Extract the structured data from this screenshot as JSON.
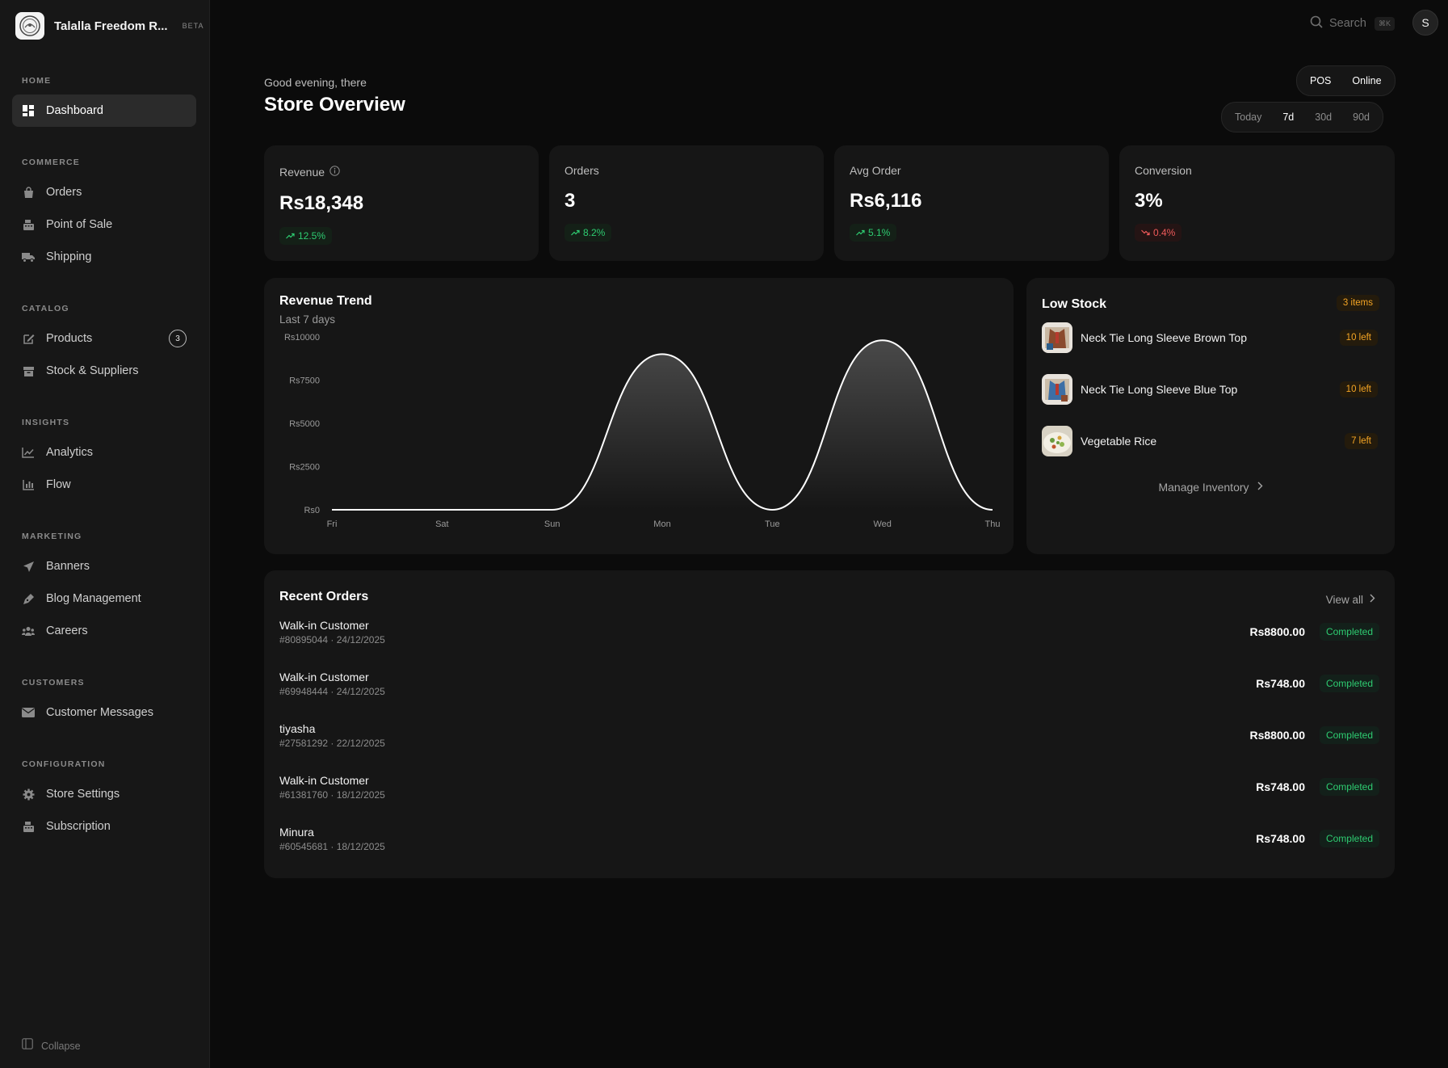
{
  "store": {
    "name": "Talalla Freedom R...",
    "badge": "BETA"
  },
  "sidebar": {
    "sections": [
      {
        "label": "HOME",
        "items": [
          {
            "label": "Dashboard",
            "icon": "dashboard-icon"
          }
        ]
      },
      {
        "label": "COMMERCE",
        "items": [
          {
            "label": "Orders",
            "icon": "shopping-bag-icon"
          },
          {
            "label": "Point of Sale",
            "icon": "cash-register-icon"
          },
          {
            "label": "Shipping",
            "icon": "truck-icon"
          }
        ]
      },
      {
        "label": "CATALOG",
        "items": [
          {
            "label": "Products",
            "icon": "edit-icon",
            "count": "3"
          },
          {
            "label": "Stock & Suppliers",
            "icon": "box-icon"
          }
        ]
      },
      {
        "label": "INSIGHTS",
        "items": [
          {
            "label": "Analytics",
            "icon": "line-chart-icon"
          },
          {
            "label": "Flow",
            "icon": "bar-chart-icon"
          }
        ]
      },
      {
        "label": "MARKETING",
        "items": [
          {
            "label": "Banners",
            "icon": "send-icon"
          },
          {
            "label": "Blog Management",
            "icon": "pen-icon"
          },
          {
            "label": "Careers",
            "icon": "users-icon"
          }
        ]
      },
      {
        "label": "CUSTOMERS",
        "items": [
          {
            "label": "Customer Messages",
            "icon": "envelope-icon"
          }
        ]
      },
      {
        "label": "CONFIGURATION",
        "items": [
          {
            "label": "Store Settings",
            "icon": "gear-icon"
          },
          {
            "label": "Subscription",
            "icon": "cash-register-icon"
          }
        ]
      }
    ],
    "active": "Dashboard",
    "collapse_label": "Collapse"
  },
  "topbar": {
    "search_label": "Search",
    "shortcut": "⌘K",
    "avatar_initial": "S"
  },
  "header": {
    "greeting": "Good evening, there",
    "title": "Store Overview",
    "channels": [
      "POS",
      "Online"
    ],
    "ranges": [
      "Today",
      "7d",
      "30d",
      "90d"
    ],
    "active_range": "7d"
  },
  "stats": [
    {
      "label": "Revenue",
      "value": "Rs18,348",
      "change": "12.5%",
      "trend": "up",
      "info_icon": true
    },
    {
      "label": "Orders",
      "value": "3",
      "change": "8.2%",
      "trend": "up"
    },
    {
      "label": "Avg Order",
      "value": "Rs6,116",
      "change": "5.1%",
      "trend": "up"
    },
    {
      "label": "Conversion",
      "value": "3%",
      "change": "0.4%",
      "trend": "down"
    }
  ],
  "revenue_trend": {
    "title": "Revenue Trend",
    "subtitle": "Last 7 days"
  },
  "chart_data": {
    "type": "area",
    "title": "Revenue Trend",
    "subtitle": "Last 7 days",
    "categories": [
      "Fri",
      "Sat",
      "Sun",
      "Mon",
      "Tue",
      "Wed",
      "Thu"
    ],
    "values": [
      0,
      0,
      0,
      9000,
      0,
      9800,
      0
    ],
    "y_ticks": [
      "Rs0",
      "Rs2500",
      "Rs5000",
      "Rs7500",
      "Rs10000"
    ],
    "ylim": [
      0,
      10000
    ],
    "grid": false,
    "legend": "none",
    "colors": {
      "line": "#ffffff",
      "fill": "#ffffff"
    }
  },
  "low_stock": {
    "title": "Low Stock",
    "count_label": "3 items",
    "items": [
      {
        "name": "Neck Tie Long Sleeve Brown Top",
        "left": "10 left"
      },
      {
        "name": "Neck Tie Long Sleeve Blue Top",
        "left": "10 left"
      },
      {
        "name": "Vegetable Rice",
        "left": "7 left"
      }
    ],
    "manage_label": "Manage Inventory"
  },
  "recent_orders": {
    "title": "Recent Orders",
    "view_all": "View all",
    "rows": [
      {
        "customer": "Walk-in Customer",
        "meta": "#80895044 · 24/12/2025",
        "amount": "Rs8800.00",
        "status": "Completed"
      },
      {
        "customer": "Walk-in Customer",
        "meta": "#69948444 · 24/12/2025",
        "amount": "Rs748.00",
        "status": "Completed"
      },
      {
        "customer": "tiyasha",
        "meta": "#27581292 · 22/12/2025",
        "amount": "Rs8800.00",
        "status": "Completed"
      },
      {
        "customer": "Walk-in Customer",
        "meta": "#61381760 · 18/12/2025",
        "amount": "Rs748.00",
        "status": "Completed"
      },
      {
        "customer": "Minura",
        "meta": "#60545681 · 18/12/2025",
        "amount": "Rs748.00",
        "status": "Completed"
      }
    ]
  },
  "colors": {
    "positive": "#2ecc71",
    "negative": "#ef5a5a",
    "warning": "#f5a524",
    "background": "#0b0b0b",
    "card": "#161616"
  }
}
